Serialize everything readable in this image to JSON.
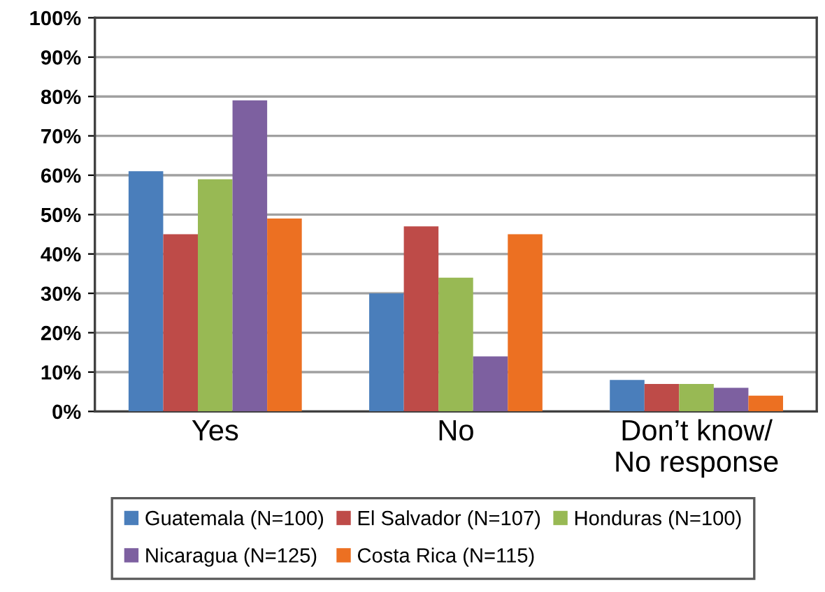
{
  "chart_data": {
    "type": "bar",
    "categories": [
      "Yes",
      "No",
      "Don’t know/\nNo response"
    ],
    "series": [
      {
        "name": "Guatemala (N=100)",
        "color": "#4a7ebb",
        "values": [
          61,
          30,
          8
        ]
      },
      {
        "name": "El Salvador (N=107)",
        "color": "#be4b48",
        "values": [
          45,
          47,
          7
        ]
      },
      {
        "name": "Honduras (N=100)",
        "color": "#98b954",
        "values": [
          59,
          34,
          7
        ]
      },
      {
        "name": "Nicaragua (N=125)",
        "color": "#7d60a0",
        "values": [
          79,
          14,
          6
        ]
      },
      {
        "name": "Costa Rica (N=115)",
        "color": "#ec7022",
        "values": [
          49,
          45,
          4
        ]
      }
    ],
    "ylim": [
      0,
      100
    ],
    "yticks": [
      {
        "value": 0,
        "label": "0%"
      },
      {
        "value": 10,
        "label": "10%"
      },
      {
        "value": 20,
        "label": "20%"
      },
      {
        "value": 30,
        "label": "30%"
      },
      {
        "value": 40,
        "label": "40%"
      },
      {
        "value": 50,
        "label": "50%"
      },
      {
        "value": 60,
        "label": "60%"
      },
      {
        "value": 70,
        "label": "70%"
      },
      {
        "value": 80,
        "label": "80%"
      },
      {
        "value": 90,
        "label": "90%"
      },
      {
        "value": 100,
        "label": "100%"
      }
    ],
    "grid": "y",
    "legend": "bottom"
  }
}
